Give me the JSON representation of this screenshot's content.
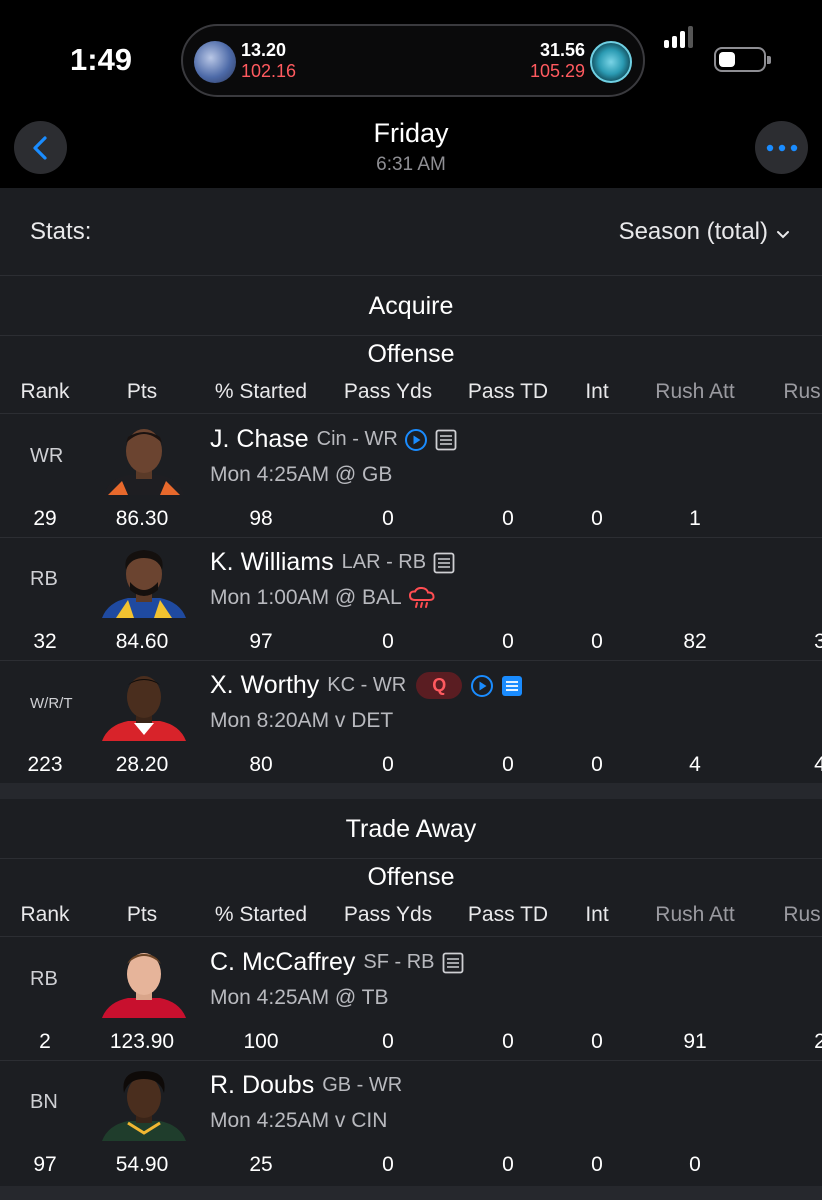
{
  "status_bar": {
    "time": "1:49",
    "score_left": {
      "a": "13.20",
      "b": "102.16"
    },
    "score_right": {
      "a": "31.56",
      "b": "105.29"
    }
  },
  "nav": {
    "title": "Friday",
    "subtitle": "6:31 AM"
  },
  "stats": {
    "label": "Stats:",
    "value": "Season (total)"
  },
  "columns": [
    "Rank",
    "Pts",
    "% Started",
    "Pass Yds",
    "Pass TD",
    "Int",
    "Rush Att",
    "Rus"
  ],
  "acquire": {
    "title": "Acquire",
    "group": "Offense",
    "players": [
      {
        "pos": "WR",
        "name": "J. Chase",
        "team": "Cin - WR",
        "game": "Mon 4:25AM @ GB",
        "values": [
          "29",
          "86.30",
          "98",
          "0",
          "0",
          "0",
          "1",
          ""
        ],
        "icons": [
          "play",
          "notes"
        ]
      },
      {
        "pos": "RB",
        "name": "K. Williams",
        "team": "LAR - RB",
        "game": "Mon 1:00AM @ BAL",
        "values": [
          "32",
          "84.60",
          "97",
          "0",
          "0",
          "0",
          "82",
          "3"
        ],
        "icons": [
          "notes"
        ],
        "weather": true
      },
      {
        "pos": "W/R/T",
        "name": "X. Worthy",
        "team": "KC - WR",
        "badge": "Q",
        "game": "Mon 8:20AM v DET",
        "values": [
          "223",
          "28.20",
          "80",
          "0",
          "0",
          "0",
          "4",
          "4"
        ],
        "icons": [
          "play",
          "notes-active"
        ]
      }
    ]
  },
  "trade": {
    "title": "Trade Away",
    "group": "Offense",
    "players": [
      {
        "pos": "RB",
        "name": "C. McCaffrey",
        "team": "SF - RB",
        "game": "Mon 4:25AM @ TB",
        "values": [
          "2",
          "123.90",
          "100",
          "0",
          "0",
          "0",
          "91",
          "2"
        ],
        "icons": [
          "notes"
        ]
      },
      {
        "pos": "BN",
        "name": "R. Doubs",
        "team": "GB - WR",
        "game": "Mon 4:25AM v CIN",
        "values": [
          "97",
          "54.90",
          "25",
          "0",
          "0",
          "0",
          "0",
          ""
        ],
        "icons": []
      }
    ]
  },
  "colors": {
    "accent": "#1a8cff",
    "injury": "#ff5a5f",
    "bg": "#1c1e22"
  }
}
